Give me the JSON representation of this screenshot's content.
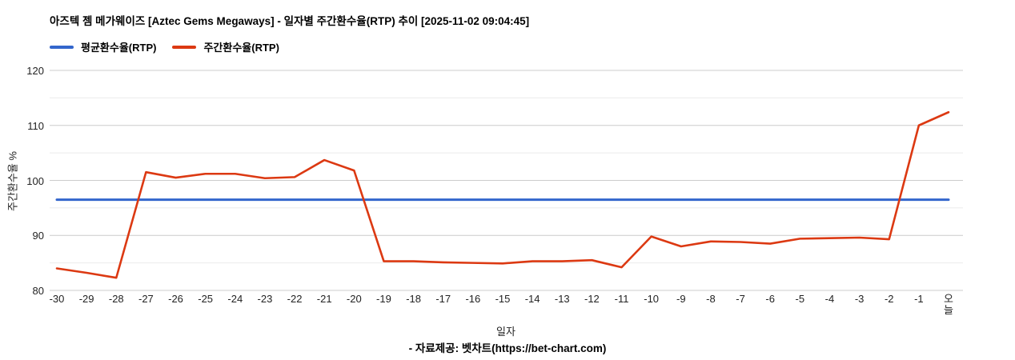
{
  "header": {
    "title": "아즈텍 젬 메가웨이즈 [Aztec Gems Megaways] - 일자별 주간환수율(RTP) 추이 [2025-11-02 09:04:45]"
  },
  "legend": {
    "items": [
      {
        "label": "평균환수율(RTP)",
        "color": "#3366cc"
      },
      {
        "label": "주간환수율(RTP)",
        "color": "#dc3912"
      }
    ]
  },
  "chart_data": {
    "type": "line",
    "title": "아즈텍 젬 메가웨이즈 [Aztec Gems Megaways] - 일자별 주간환수율(RTP) 추이 [2025-11-02 09:04:45]",
    "xlabel": "일자",
    "ylabel": "주간환수율 %",
    "ylim": [
      80,
      120
    ],
    "yticks": [
      80,
      90,
      100,
      110,
      120
    ],
    "minor_yticks": [
      85,
      95,
      105,
      115
    ],
    "grid": "horizontal",
    "legend_position": "top-left",
    "categories": [
      "-30",
      "-29",
      "-28",
      "-27",
      "-26",
      "-25",
      "-24",
      "-23",
      "-22",
      "-21",
      "-20",
      "-19",
      "-18",
      "-17",
      "-16",
      "-15",
      "-14",
      "-13",
      "-12",
      "-11",
      "-10",
      "-9",
      "-8",
      "-7",
      "-6",
      "-5",
      "-4",
      "-3",
      "-2",
      "-1",
      "오늘"
    ],
    "series": [
      {
        "name": "평균환수율(RTP)",
        "style": "constant-line",
        "color": "#3366cc",
        "value": 96.5
      },
      {
        "name": "주간환수율(RTP)",
        "style": "line",
        "color": "#dc3912",
        "values": [
          84.0,
          83.2,
          82.3,
          101.5,
          100.5,
          101.2,
          101.2,
          100.4,
          100.6,
          103.7,
          101.8,
          85.3,
          85.3,
          85.1,
          85.0,
          84.9,
          85.3,
          85.3,
          85.5,
          84.2,
          89.8,
          88.0,
          88.9,
          88.8,
          88.5,
          89.4,
          89.5,
          89.6,
          89.3,
          110.0,
          112.4
        ]
      }
    ]
  },
  "colors": {
    "grid_major": "#cccccc",
    "grid_minor": "#ebebeb",
    "axis_text": "#222222"
  },
  "footer": {
    "text": "- 자료제공: 벳차트(https://bet-chart.com)"
  }
}
